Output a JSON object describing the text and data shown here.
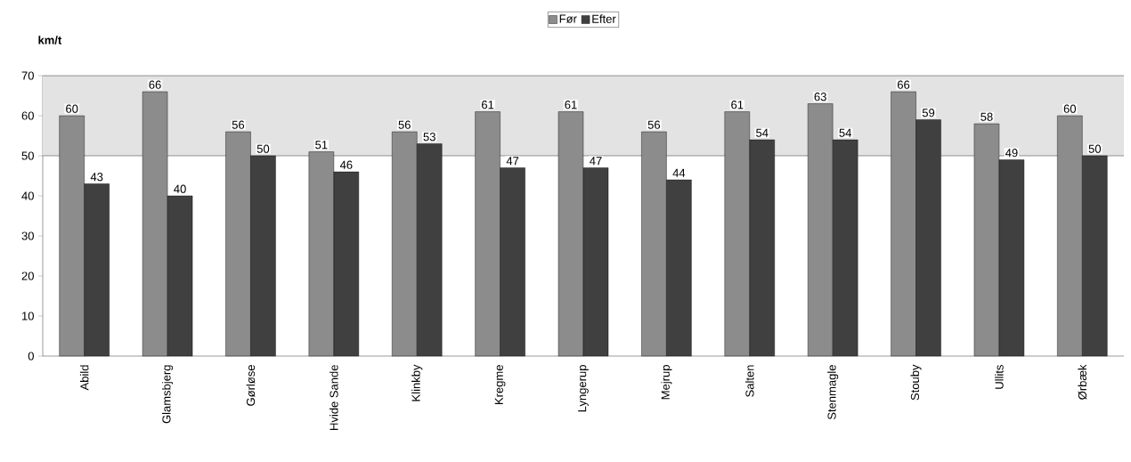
{
  "chart_data": {
    "type": "bar",
    "ylabel": "km/t",
    "categories": [
      "Abild",
      "Glamsbjerg",
      "Gørløse",
      "Hvide Sande",
      "Klinkby",
      "Kregme",
      "Lyngerup",
      "Mejrup",
      "Salten",
      "Stenmagle",
      "Stouby",
      "Ullits",
      "Ørbæk"
    ],
    "series": [
      {
        "name": "Før",
        "color": "#8c8c8c",
        "values": [
          60,
          66,
          56,
          51,
          56,
          61,
          61,
          56,
          61,
          63,
          66,
          58,
          60
        ]
      },
      {
        "name": "Efter",
        "color": "#404040",
        "values": [
          43,
          40,
          50,
          46,
          53,
          47,
          47,
          44,
          54,
          54,
          59,
          49,
          50
        ]
      }
    ],
    "ylim": [
      0,
      70
    ],
    "yticks": [
      0,
      10,
      20,
      30,
      40,
      50,
      60,
      70
    ],
    "bands": [
      {
        "axis": "y",
        "from": 50,
        "to": 70,
        "color": "#e3e3e3"
      }
    ],
    "ref_lines": [
      {
        "axis": "y",
        "value": 50,
        "color": "#000000"
      }
    ],
    "data_labels": true,
    "legend": "top",
    "grid": false
  }
}
